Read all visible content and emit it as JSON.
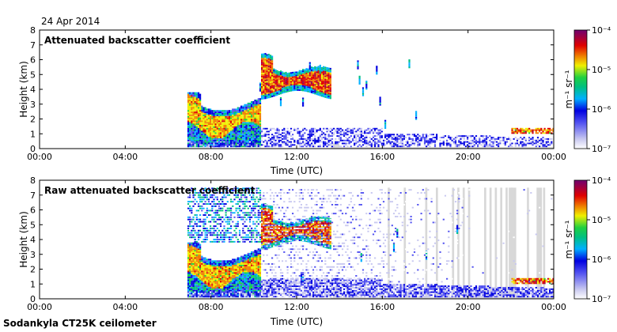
{
  "header": {
    "date": "24 Apr 2014"
  },
  "footer": {
    "site": "Sodankyla CT25K ceilometer"
  },
  "colors": {
    "colormap": [
      "#ffffff",
      "#c8c8f0",
      "#5050f0",
      "#0000e0",
      "#00b0ff",
      "#00c080",
      "#20d040",
      "#f0f000",
      "#f08000",
      "#e00000",
      "#a00040",
      "#700070"
    ],
    "missing": "#d8d8d8"
  },
  "chart_data": [
    {
      "type": "heatmap",
      "title": "Attenuated backscatter coefficient",
      "xlabel": "Time (UTC)",
      "ylabel": "Height (km)",
      "xlim": [
        0,
        24
      ],
      "ylim": [
        0,
        8
      ],
      "xticks": [
        "00:00",
        "04:00",
        "08:00",
        "12:00",
        "16:00",
        "20:00",
        "00:00"
      ],
      "yticks": [
        "0",
        "1",
        "2",
        "3",
        "4",
        "5",
        "6",
        "7",
        "8"
      ],
      "colorbar": {
        "label": "m⁻¹ sr⁻¹",
        "ticks": [
          "10⁻⁴",
          "10⁻⁵",
          "10⁻⁶",
          "10⁻⁷"
        ],
        "range": [
          -7,
          -4
        ],
        "scale": "log10"
      },
      "features": [
        {
          "name": "low cloud layer",
          "t": [
            6.9,
            10.3
          ],
          "h": [
            0.4,
            3.6
          ],
          "log10_beta": -4.6
        },
        {
          "name": "mid-level cloud",
          "t": [
            10.3,
            13.6
          ],
          "h": [
            3.7,
            5.8
          ],
          "log10_beta": -4.7
        },
        {
          "name": "boundary layer aerosol",
          "t": [
            6.9,
            24.0
          ],
          "h": [
            0.0,
            1.0
          ],
          "log10_beta": -6.5
        },
        {
          "name": "late low cloud",
          "t": [
            22.0,
            24.0
          ],
          "h": [
            1.0,
            1.4
          ],
          "log10_beta": -4.5
        }
      ]
    },
    {
      "type": "heatmap",
      "title": "Raw attenuated backscatter coefficient",
      "xlabel": "Time (UTC)",
      "ylabel": "Height (km)",
      "xlim": [
        0,
        24
      ],
      "ylim": [
        0,
        8
      ],
      "xticks": [
        "00:00",
        "04:00",
        "08:00",
        "12:00",
        "16:00",
        "20:00",
        "00:00"
      ],
      "yticks": [
        "0",
        "1",
        "2",
        "3",
        "4",
        "5",
        "6",
        "7",
        "8"
      ],
      "colorbar": {
        "label": "m⁻¹ sr⁻¹",
        "ticks": [
          "10⁻⁴",
          "10⁻⁵",
          "10⁻⁶",
          "10⁻⁷"
        ],
        "range": [
          -7,
          -4
        ],
        "scale": "log10"
      },
      "features": [
        {
          "name": "noisy period",
          "t": [
            6.9,
            10.3
          ],
          "h": [
            0.0,
            7.5
          ],
          "log10_beta": -6.0
        },
        {
          "name": "low cloud layer",
          "t": [
            6.9,
            10.3
          ],
          "h": [
            1.5,
            3.3
          ],
          "log10_beta": -4.6
        },
        {
          "name": "mid-level cloud",
          "t": [
            10.3,
            13.6
          ],
          "h": [
            3.7,
            5.4
          ],
          "log10_beta": -4.7
        },
        {
          "name": "noise region",
          "t": [
            10.3,
            24.0
          ],
          "h": [
            0.0,
            7.5
          ],
          "log10_beta": -6.6
        },
        {
          "name": "late low cloud",
          "t": [
            22.0,
            24.0
          ],
          "h": [
            1.0,
            1.4
          ],
          "log10_beta": -4.5
        }
      ]
    }
  ]
}
